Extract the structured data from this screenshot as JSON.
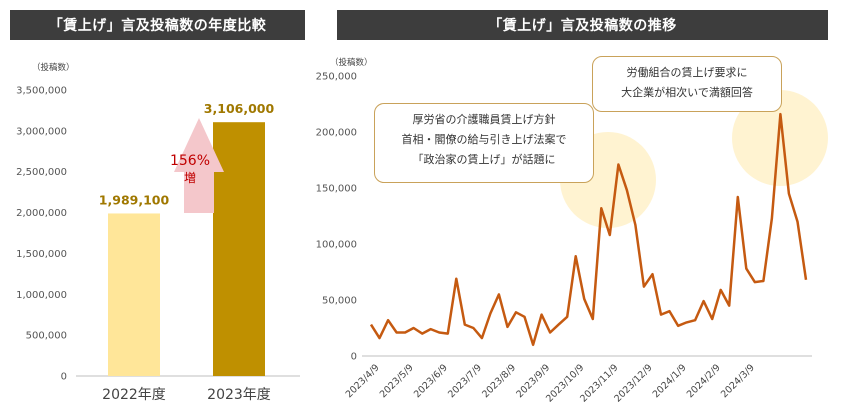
{
  "chart_data": [
    {
      "type": "bar",
      "title": "「賃上げ」言及投稿数の年度比較",
      "ylabel": "（投稿数）",
      "ylim": [
        0,
        3500000
      ],
      "yticks": [
        "3,500,000",
        "3,000,000",
        "2,500,000",
        "2,000,000",
        "1,500,000",
        "1,000,000",
        "500,000",
        "0"
      ],
      "categories": [
        "2022年度",
        "2023年度"
      ],
      "values": [
        1989100,
        3106000
      ],
      "value_labels": [
        "1,989,100",
        "3,106,000"
      ],
      "bar_colors": [
        "#ffe699",
        "#bf9000"
      ],
      "annotation": {
        "pct": "156%",
        "suffix": "増",
        "arrow_color": "#f4c7cb"
      }
    },
    {
      "type": "line",
      "title": "「賃上げ」言及投稿数の推移",
      "ylabel": "（投稿数）",
      "ylim": [
        0,
        250000
      ],
      "yticks": [
        "250,000",
        "200,000",
        "150,000",
        "100,000",
        "50,000",
        "0"
      ],
      "line_color": "#c55a11",
      "x_tick_labels": [
        "2023/4/9",
        "2023/5/9",
        "2023/6/9",
        "2023/7/9",
        "2023/8/9",
        "2023/9/9",
        "2023/10/9",
        "2023/11/9",
        "2023/12/9",
        "2024/1/9",
        "2024/2/9",
        "2024/3/9"
      ],
      "values": [
        28000,
        16000,
        32000,
        21000,
        21000,
        25000,
        20000,
        24000,
        21000,
        20000,
        69000,
        28000,
        25000,
        16000,
        38000,
        55000,
        26000,
        39000,
        35000,
        10000,
        37000,
        21000,
        28000,
        35000,
        89000,
        51000,
        33000,
        132000,
        108000,
        171000,
        148000,
        117000,
        62000,
        73000,
        37000,
        40000,
        27000,
        30000,
        32000,
        49000,
        33000,
        59000,
        45000,
        142000,
        78000,
        66000,
        67000,
        123000,
        216000,
        145000,
        120000,
        68000
      ],
      "annotations": [
        {
          "lines": [
            "厚労省の介護職員賃上げ方針",
            "首相・閣僚の給与引き上げ法案で",
            "「政治家の賃上げ」が話題に"
          ]
        },
        {
          "lines": [
            "労働組合の賃上げ要求に",
            "大企業が相次いで満額回答"
          ]
        }
      ]
    }
  ]
}
